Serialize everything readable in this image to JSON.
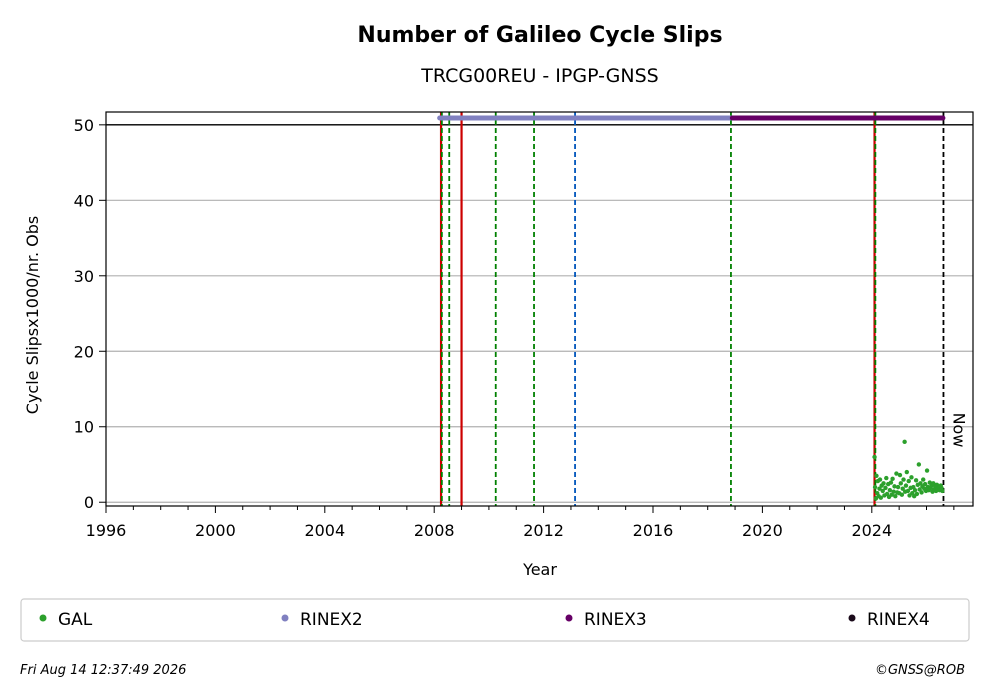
{
  "chart_data": {
    "type": "scatter",
    "title": "Number of Galileo Cycle Slips",
    "subtitle": "TRCG00REU - IPGP-GNSS",
    "xlabel": "Year",
    "ylabel": "Cycle Slipsx1000/nr. Obs",
    "xlim": [
      1996,
      2027.7
    ],
    "ylim": [
      -0.5,
      51.7
    ],
    "x_ticks": [
      1996,
      2000,
      2004,
      2008,
      2012,
      2016,
      2020,
      2024
    ],
    "y_ticks": [
      0,
      10,
      20,
      30,
      40,
      50
    ],
    "grid": "y",
    "legend_placement": "bottom",
    "legend": [
      {
        "label": "GAL",
        "color": "#2ca02c"
      },
      {
        "label": "RINEX2",
        "color": "#8080c0"
      },
      {
        "label": "RINEX3",
        "color": "#660066"
      },
      {
        "label": "RINEX4",
        "color": "#1a0a1a"
      }
    ],
    "reference_line_y": 50,
    "format_bands": [
      {
        "name": "RINEX2",
        "start": 2008.2,
        "end": 2018.9,
        "y": 50.9,
        "color": "#8080c0"
      },
      {
        "name": "RINEX3",
        "start": 2018.9,
        "end": 2026.6,
        "y": 50.9,
        "color": "#660066"
      }
    ],
    "vertical_lines": [
      {
        "x": 2008.25,
        "color": "#cc0000",
        "style": "solid"
      },
      {
        "x": 2008.28,
        "color": "#008000",
        "style": "dashed"
      },
      {
        "x": 2008.55,
        "color": "#008000",
        "style": "dashed"
      },
      {
        "x": 2009.0,
        "color": "#cc0000",
        "style": "solid"
      },
      {
        "x": 2010.25,
        "color": "#008000",
        "style": "dashed"
      },
      {
        "x": 2011.65,
        "color": "#008000",
        "style": "dashed"
      },
      {
        "x": 2013.15,
        "color": "#0055bb",
        "style": "dashed"
      },
      {
        "x": 2018.85,
        "color": "#008000",
        "style": "dashed"
      },
      {
        "x": 2024.1,
        "color": "#cc0000",
        "style": "solid"
      },
      {
        "x": 2024.13,
        "color": "#008000",
        "style": "dashed"
      },
      {
        "x": 2026.62,
        "color": "#000000",
        "style": "dashed"
      }
    ],
    "now_label": "Now",
    "now_x": 2026.62,
    "series": [
      {
        "name": "GAL",
        "color": "#2ca02c",
        "points": [
          [
            2024.1,
            6.0
          ],
          [
            2024.12,
            2.0
          ],
          [
            2024.15,
            0.5
          ],
          [
            2024.17,
            3.5
          ],
          [
            2024.2,
            1.2
          ],
          [
            2024.22,
            2.8
          ],
          [
            2024.25,
            0.8
          ],
          [
            2024.28,
            1.8
          ],
          [
            2024.3,
            3.0
          ],
          [
            2024.33,
            0.6
          ],
          [
            2024.36,
            2.2
          ],
          [
            2024.4,
            1.5
          ],
          [
            2024.43,
            2.5
          ],
          [
            2024.46,
            0.9
          ],
          [
            2024.5,
            1.9
          ],
          [
            2024.53,
            3.2
          ],
          [
            2024.56,
            1.1
          ],
          [
            2024.6,
            2.4
          ],
          [
            2024.63,
            0.7
          ],
          [
            2024.66,
            1.6
          ],
          [
            2024.7,
            2.6
          ],
          [
            2024.73,
            1.0
          ],
          [
            2024.76,
            3.1
          ],
          [
            2024.8,
            1.4
          ],
          [
            2024.83,
            2.1
          ],
          [
            2024.86,
            0.8
          ],
          [
            2024.9,
            3.8
          ],
          [
            2024.93,
            1.3
          ],
          [
            2024.96,
            2.0
          ],
          [
            2025.0,
            1.2
          ],
          [
            2025.03,
            3.6
          ],
          [
            2025.06,
            2.5
          ],
          [
            2025.1,
            1.0
          ],
          [
            2025.13,
            1.8
          ],
          [
            2025.16,
            3.0
          ],
          [
            2025.2,
            8.0
          ],
          [
            2025.22,
            1.4
          ],
          [
            2025.25,
            2.2
          ],
          [
            2025.28,
            4.0
          ],
          [
            2025.32,
            1.5
          ],
          [
            2025.35,
            2.8
          ],
          [
            2025.38,
            0.9
          ],
          [
            2025.42,
            1.9
          ],
          [
            2025.45,
            3.3
          ],
          [
            2025.48,
            1.2
          ],
          [
            2025.52,
            2.0
          ],
          [
            2025.55,
            0.8
          ],
          [
            2025.58,
            1.6
          ],
          [
            2025.62,
            2.9
          ],
          [
            2025.65,
            1.1
          ],
          [
            2025.68,
            2.3
          ],
          [
            2025.72,
            5.0
          ],
          [
            2025.75,
            1.7
          ],
          [
            2025.78,
            2.5
          ],
          [
            2025.82,
            1.3
          ],
          [
            2025.85,
            2.1
          ],
          [
            2025.88,
            3.0
          ],
          [
            2025.92,
            1.8
          ],
          [
            2025.95,
            2.4
          ],
          [
            2025.98,
            1.5
          ],
          [
            2026.02,
            4.2
          ],
          [
            2026.05,
            2.0
          ],
          [
            2026.08,
            1.6
          ],
          [
            2026.12,
            2.6
          ],
          [
            2026.15,
            1.9
          ],
          [
            2026.18,
            2.2
          ],
          [
            2026.22,
            1.4
          ],
          [
            2026.25,
            2.5
          ],
          [
            2026.28,
            1.7
          ],
          [
            2026.32,
            2.1
          ],
          [
            2026.35,
            1.5
          ],
          [
            2026.38,
            2.3
          ],
          [
            2026.42,
            1.8
          ],
          [
            2026.45,
            2.0
          ],
          [
            2026.48,
            1.6
          ],
          [
            2026.52,
            2.2
          ],
          [
            2026.55,
            1.9
          ],
          [
            2026.58,
            1.5
          ]
        ]
      }
    ]
  },
  "footer": {
    "timestamp": "Fri Aug 14 12:37:49 2026",
    "credit": "©GNSS@ROB"
  }
}
